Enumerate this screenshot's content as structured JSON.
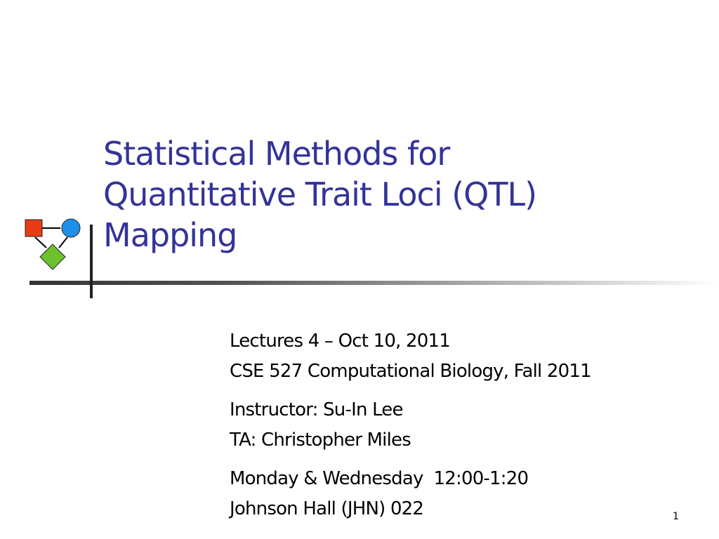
{
  "slide": {
    "title": [
      "Statistical Methods for",
      "Quantitative Trait Loci (QTL)",
      "Mapping"
    ],
    "subtitle_groups": [
      [
        "Lectures 4 – Oct 10, 2011",
        "CSE 527 Computational Biology, Fall 2011"
      ],
      [
        "Instructor: Su-In Lee",
        "TA: Christopher Miles"
      ],
      [
        "Monday & Wednesday  12:00-1:20",
        "Johnson Hall (JHN) 022"
      ]
    ],
    "page_number": "1"
  }
}
